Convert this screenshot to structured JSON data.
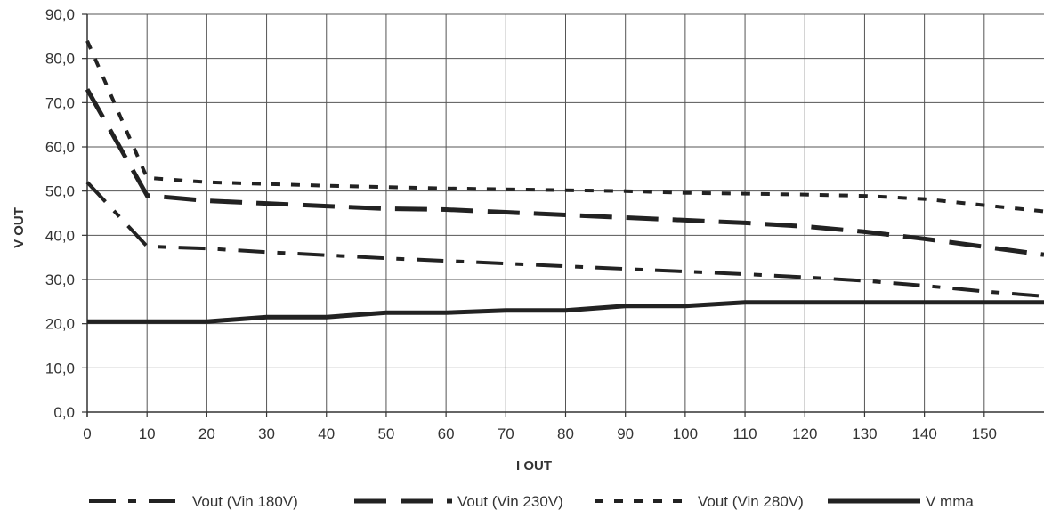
{
  "chart_data": {
    "type": "line",
    "xlabel": "I OUT",
    "ylabel": "V OUT",
    "xlim": [
      0,
      160
    ],
    "ylim": [
      0,
      90
    ],
    "x_ticks": [
      "0",
      "10",
      "20",
      "30",
      "40",
      "50",
      "60",
      "70",
      "80",
      "90",
      "100",
      "110",
      "120",
      "130",
      "140",
      "150"
    ],
    "y_ticks": [
      "0,0",
      "10,0",
      "20,0",
      "30,0",
      "40,0",
      "50,0",
      "60,0",
      "70,0",
      "80,0",
      "90,0"
    ],
    "grid": true,
    "legend_position": "bottom",
    "x": [
      0,
      10,
      20,
      30,
      40,
      50,
      60,
      70,
      80,
      90,
      100,
      110,
      120,
      130,
      140,
      150,
      160
    ],
    "series": [
      {
        "name": "Vout (Vin 180V)",
        "style": "dash-dot",
        "color": "#222222",
        "values": [
          52.0,
          37.5,
          37.0,
          36.2,
          35.5,
          34.8,
          34.2,
          33.6,
          33.0,
          32.4,
          31.8,
          31.2,
          30.5,
          29.7,
          28.6,
          27.3,
          26.2
        ]
      },
      {
        "name": "Vout (Vin 230V)",
        "style": "long-dash",
        "color": "#222222",
        "values": [
          73.0,
          49.0,
          47.8,
          47.2,
          46.6,
          46.0,
          45.8,
          45.2,
          44.6,
          44.0,
          43.4,
          42.8,
          42.0,
          40.8,
          39.2,
          37.4,
          35.6
        ]
      },
      {
        "name": "Vout (Vin 280V)",
        "style": "short-dash",
        "color": "#222222",
        "values": [
          84.0,
          53.0,
          52.0,
          51.6,
          51.2,
          50.9,
          50.6,
          50.4,
          50.2,
          50.0,
          49.6,
          49.4,
          49.2,
          48.9,
          48.2,
          46.8,
          45.4
        ]
      },
      {
        "name": "V mma",
        "style": "solid",
        "color": "#222222",
        "values": [
          20.5,
          20.5,
          20.5,
          21.5,
          21.5,
          22.5,
          22.5,
          23.0,
          23.0,
          24.0,
          24.0,
          24.8,
          24.8,
          24.8,
          24.8,
          24.8,
          24.8
        ]
      }
    ]
  }
}
